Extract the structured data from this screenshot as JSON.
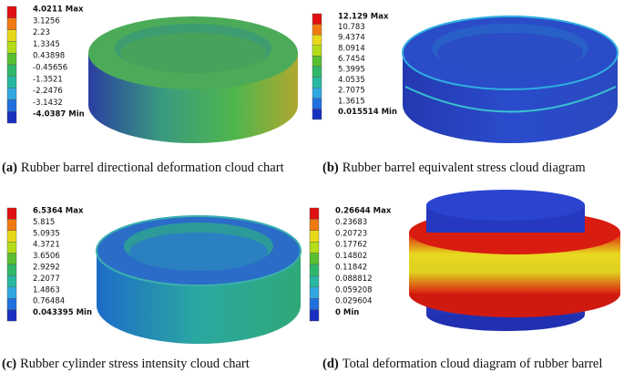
{
  "panels": [
    {
      "label": "(a)",
      "caption": "Rubber barrel directional deformation cloud chart",
      "legend": [
        "4.0211 Max",
        "3.1256",
        "2.23",
        "1.3345",
        "0.43898",
        "-0.45656",
        "-1.3521",
        "-2.2476",
        "-3.1432",
        "-4.0387 Min"
      ]
    },
    {
      "label": "(b)",
      "caption": "Rubber barrel equivalent stress cloud diagram",
      "legend": [
        "12.129 Max",
        "10.783",
        "9.4374",
        "8.0914",
        "6.7454",
        "5.3995",
        "4.0535",
        "2.7075",
        "1.3615",
        "0.015514 Min"
      ]
    },
    {
      "label": "(c)",
      "caption": "Rubber cylinder stress intensity cloud chart",
      "legend": [
        "6.5364 Max",
        "5.815",
        "5.0935",
        "4.3721",
        "3.6506",
        "2.9292",
        "2.2077",
        "1.4863",
        "0.76484",
        "0.043395 Min"
      ]
    },
    {
      "label": "(d)",
      "caption": "Total deformation cloud diagram of rubber barrel",
      "legend": [
        "0.26644 Max",
        "0.23683",
        "0.20723",
        "0.17762",
        "0.14802",
        "0.11842",
        "0.088812",
        "0.059208",
        "0.029604",
        "0 Min"
      ]
    }
  ]
}
